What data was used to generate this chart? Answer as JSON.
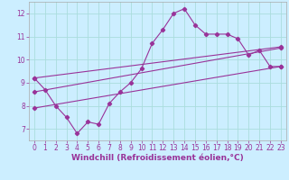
{
  "xlabel": "Windchill (Refroidissement éolien,°C)",
  "background_color": "#cceeff",
  "grid_color": "#aadddd",
  "line_color": "#993399",
  "xlim": [
    -0.5,
    23.5
  ],
  "ylim": [
    6.5,
    12.5
  ],
  "yticks": [
    7,
    8,
    9,
    10,
    11,
    12
  ],
  "xticks": [
    0,
    1,
    2,
    3,
    4,
    5,
    6,
    7,
    8,
    9,
    10,
    11,
    12,
    13,
    14,
    15,
    16,
    17,
    18,
    19,
    20,
    21,
    22,
    23
  ],
  "series1_x": [
    0,
    1,
    2,
    3,
    4,
    5,
    6,
    7,
    8,
    9,
    10,
    11,
    12,
    13,
    14,
    15,
    16,
    17,
    18,
    19,
    20,
    21,
    22,
    23
  ],
  "series1_y": [
    9.2,
    8.7,
    8.0,
    7.5,
    6.8,
    7.3,
    7.2,
    8.1,
    8.6,
    9.0,
    9.6,
    10.7,
    11.3,
    12.0,
    12.2,
    11.5,
    11.1,
    11.1,
    11.1,
    10.9,
    10.2,
    10.4,
    9.7,
    9.7
  ],
  "series2_x": [
    0,
    23
  ],
  "series2_y": [
    7.9,
    9.7
  ],
  "series3_x": [
    0,
    23
  ],
  "series3_y": [
    8.6,
    10.5
  ],
  "series4_x": [
    0,
    23
  ],
  "series4_y": [
    9.2,
    10.55
  ],
  "tick_fontsize": 5.5,
  "label_fontsize": 6.5
}
